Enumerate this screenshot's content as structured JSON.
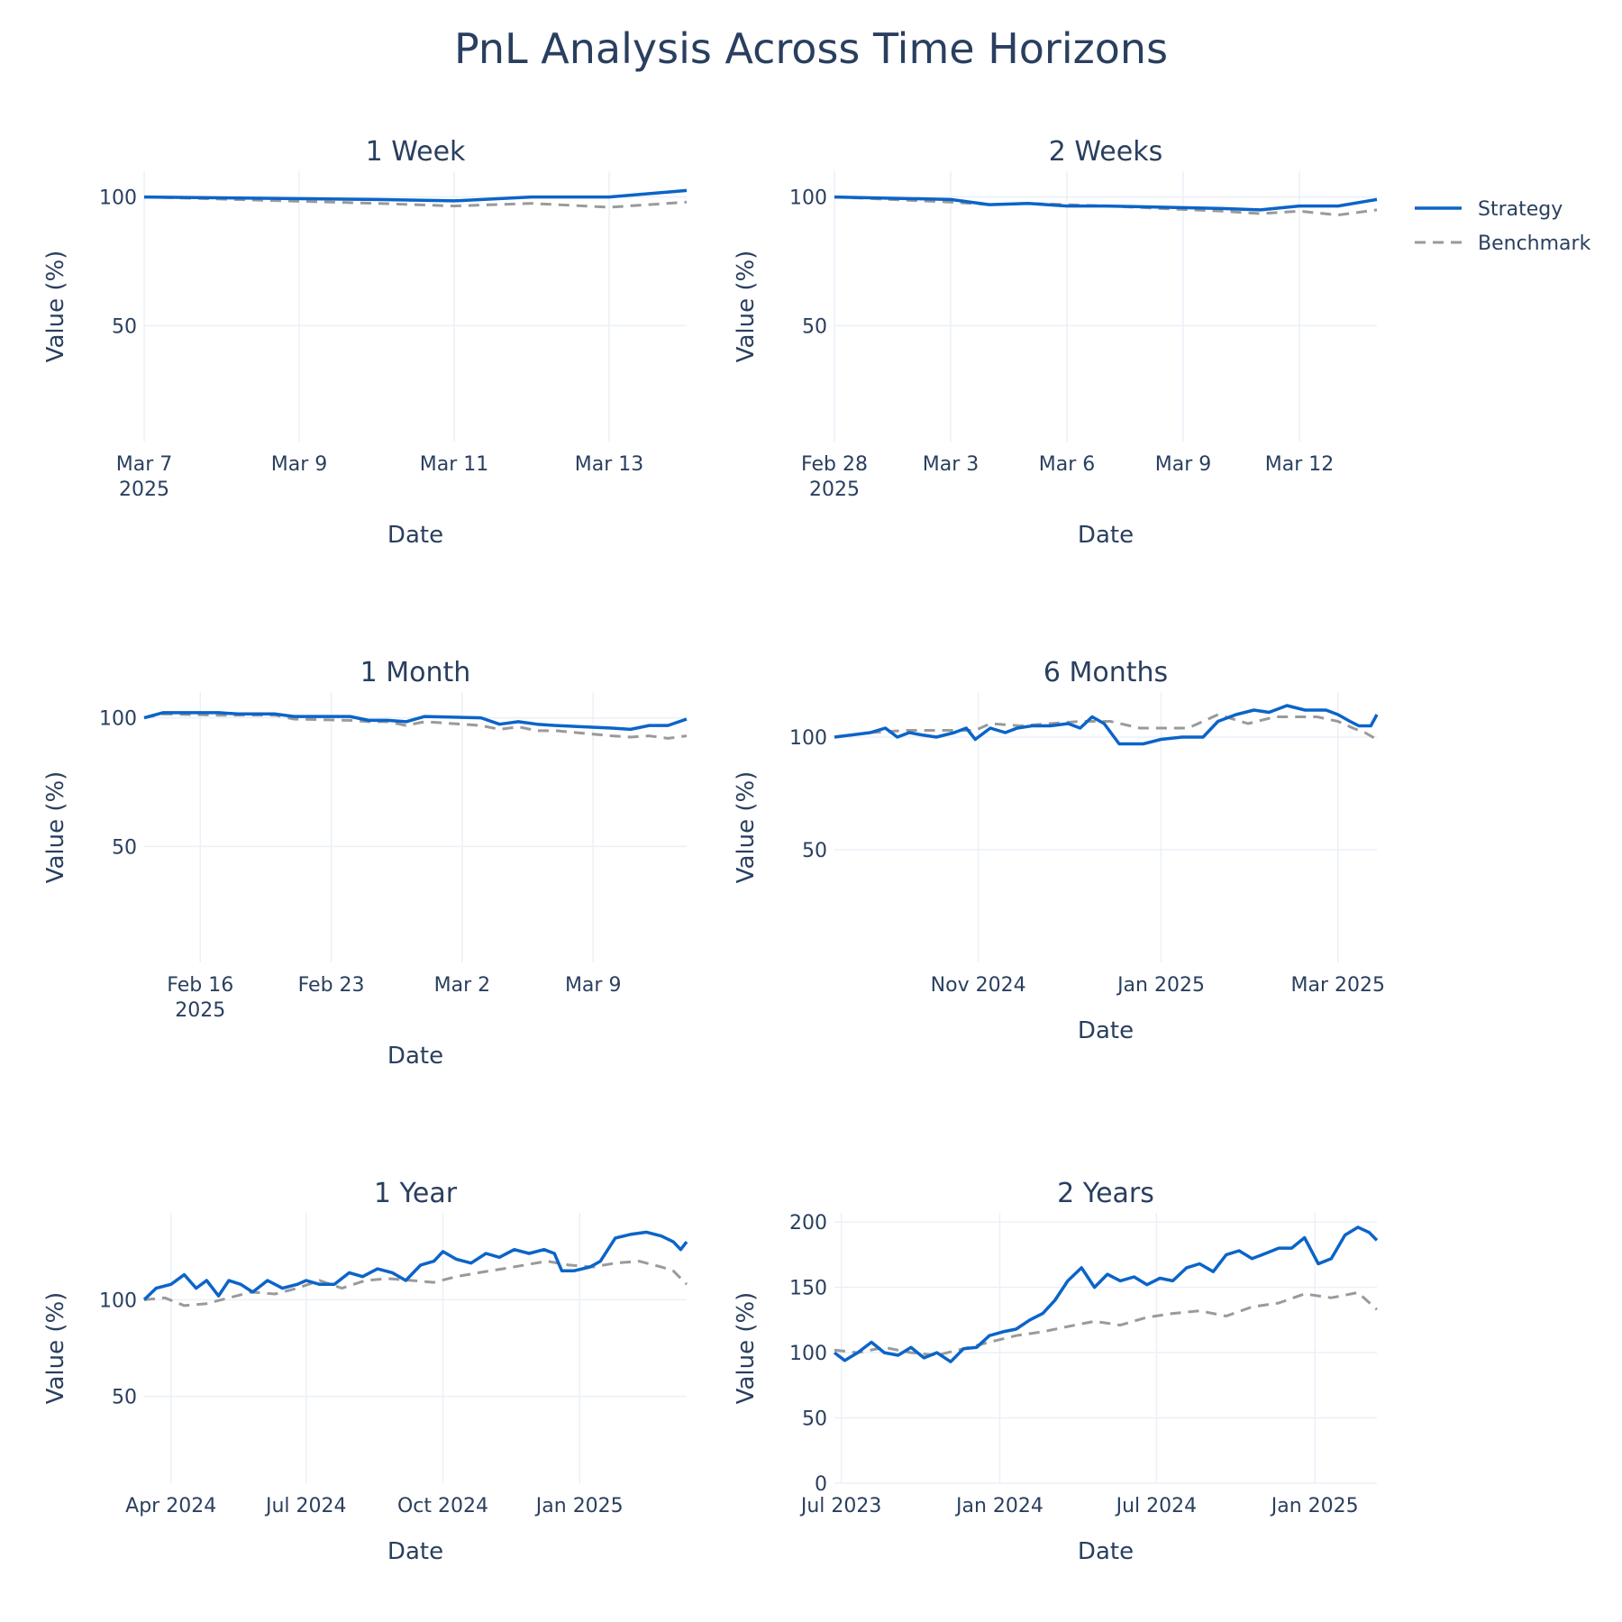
{
  "title": "PnL Analysis Across Time Horizons",
  "legend": {
    "placement": "top-right",
    "items": [
      {
        "name": "Strategy",
        "color": "#0b64c8",
        "dash": "solid"
      },
      {
        "name": "Benchmark",
        "color": "#9a9a9a",
        "dash": "dashed"
      }
    ]
  },
  "chart_data": [
    {
      "type": "line",
      "title": "1 Week",
      "xlabel": "Date",
      "ylabel": "Value (%)",
      "xlim": [
        "2025-03-07",
        "2025-03-14"
      ],
      "ylim": [
        5,
        110
      ],
      "yticks": [
        50,
        100
      ],
      "xticks": [
        {
          "date": "2025-03-07",
          "label": "Mar 7",
          "sublabel": "2025"
        },
        {
          "date": "2025-03-09",
          "label": "Mar 9"
        },
        {
          "date": "2025-03-11",
          "label": "Mar 11"
        },
        {
          "date": "2025-03-13",
          "label": "Mar 13"
        }
      ],
      "series": [
        {
          "name": "Strategy",
          "x": [
            "2025-03-07",
            "2025-03-10",
            "2025-03-11",
            "2025-03-12",
            "2025-03-13",
            "2025-03-14"
          ],
          "y": [
            100,
            99,
            98.5,
            100,
            100,
            102.5
          ]
        },
        {
          "name": "Benchmark",
          "x": [
            "2025-03-07",
            "2025-03-10",
            "2025-03-11",
            "2025-03-12",
            "2025-03-13",
            "2025-03-14"
          ],
          "y": [
            100,
            97.5,
            96.5,
            97.5,
            96,
            98
          ]
        }
      ]
    },
    {
      "type": "line",
      "title": "2 Weeks",
      "xlabel": "Date",
      "ylabel": "Value (%)",
      "xlim": [
        "2025-02-28",
        "2025-03-14"
      ],
      "ylim": [
        5,
        110
      ],
      "yticks": [
        50,
        100
      ],
      "xticks": [
        {
          "date": "2025-02-28",
          "label": "Feb 28",
          "sublabel": "2025"
        },
        {
          "date": "2025-03-03",
          "label": "Mar 3"
        },
        {
          "date": "2025-03-06",
          "label": "Mar 6"
        },
        {
          "date": "2025-03-09",
          "label": "Mar 9"
        },
        {
          "date": "2025-03-12",
          "label": "Mar 12"
        }
      ],
      "series": [
        {
          "name": "Strategy",
          "x": [
            "2025-02-28",
            "2025-03-03",
            "2025-03-04",
            "2025-03-05",
            "2025-03-06",
            "2025-03-07",
            "2025-03-10",
            "2025-03-11",
            "2025-03-12",
            "2025-03-13",
            "2025-03-14"
          ],
          "y": [
            100,
            99,
            97,
            97.5,
            96.5,
            96.5,
            95.5,
            95,
            96.5,
            96.5,
            99
          ]
        },
        {
          "name": "Benchmark",
          "x": [
            "2025-02-28",
            "2025-03-03",
            "2025-03-04",
            "2025-03-05",
            "2025-03-06",
            "2025-03-07",
            "2025-03-10",
            "2025-03-11",
            "2025-03-12",
            "2025-03-13",
            "2025-03-14"
          ],
          "y": [
            100,
            98,
            97,
            97.5,
            97,
            96.5,
            94.5,
            93.5,
            94.5,
            93,
            95
          ]
        }
      ]
    },
    {
      "type": "line",
      "title": "1 Month",
      "xlabel": "Date",
      "ylabel": "Value (%)",
      "xlim": [
        "2025-02-13",
        "2025-03-14"
      ],
      "ylim": [
        5,
        110
      ],
      "yticks": [
        50,
        100
      ],
      "xticks": [
        {
          "date": "2025-02-16",
          "label": "Feb 16",
          "sublabel": "2025"
        },
        {
          "date": "2025-02-23",
          "label": "Feb 23"
        },
        {
          "date": "2025-03-02",
          "label": "Mar 2"
        },
        {
          "date": "2025-03-09",
          "label": "Mar 9"
        }
      ],
      "series": [
        {
          "name": "Strategy",
          "x": [
            "2025-02-13",
            "2025-02-14",
            "2025-02-17",
            "2025-02-18",
            "2025-02-19",
            "2025-02-20",
            "2025-02-21",
            "2025-02-24",
            "2025-02-25",
            "2025-02-26",
            "2025-02-27",
            "2025-02-28",
            "2025-03-03",
            "2025-03-04",
            "2025-03-05",
            "2025-03-06",
            "2025-03-07",
            "2025-03-10",
            "2025-03-11",
            "2025-03-12",
            "2025-03-13",
            "2025-03-14"
          ],
          "y": [
            100,
            102,
            102,
            101.5,
            101.5,
            101.5,
            100.5,
            100.5,
            99,
            99,
            98.5,
            100.5,
            100,
            97.5,
            98.5,
            97.5,
            97,
            96,
            95.5,
            97,
            97,
            99.5
          ]
        },
        {
          "name": "Benchmark",
          "x": [
            "2025-02-13",
            "2025-02-14",
            "2025-02-17",
            "2025-02-18",
            "2025-02-19",
            "2025-02-20",
            "2025-02-21",
            "2025-02-24",
            "2025-02-25",
            "2025-02-26",
            "2025-02-27",
            "2025-02-28",
            "2025-03-03",
            "2025-03-04",
            "2025-03-05",
            "2025-03-06",
            "2025-03-07",
            "2025-03-10",
            "2025-03-11",
            "2025-03-12",
            "2025-03-13",
            "2025-03-14"
          ],
          "y": [
            100,
            101.5,
            101,
            101,
            101,
            101,
            99.5,
            99,
            98.5,
            98.5,
            97,
            98.5,
            97,
            95.5,
            96.5,
            95,
            95,
            93,
            92.5,
            93,
            92,
            93
          ]
        }
      ]
    },
    {
      "type": "line",
      "title": "6 Months",
      "xlabel": "Date",
      "ylabel": "Value (%)",
      "xlim": [
        "2024-09-14",
        "2025-03-14"
      ],
      "ylim": [
        0,
        120
      ],
      "yticks": [
        50,
        100
      ],
      "xticks": [
        {
          "date": "2024-11-01",
          "label": "Nov 2024"
        },
        {
          "date": "2025-01-01",
          "label": "Jan 2025"
        },
        {
          "date": "2025-03-01",
          "label": "Mar 2025"
        }
      ],
      "series": [
        {
          "name": "Strategy",
          "x": [
            "2024-09-14",
            "2024-09-20",
            "2024-09-26",
            "2024-10-01",
            "2024-10-05",
            "2024-10-09",
            "2024-10-13",
            "2024-10-18",
            "2024-10-24",
            "2024-10-28",
            "2024-10-31",
            "2024-11-05",
            "2024-11-10",
            "2024-11-14",
            "2024-11-19",
            "2024-11-25",
            "2024-12-01",
            "2024-12-05",
            "2024-12-09",
            "2024-12-13",
            "2024-12-18",
            "2024-12-20",
            "2024-12-26",
            "2025-01-01",
            "2025-01-08",
            "2025-01-15",
            "2025-01-20",
            "2025-01-26",
            "2025-02-01",
            "2025-02-06",
            "2025-02-12",
            "2025-02-18",
            "2025-02-25",
            "2025-03-01",
            "2025-03-05",
            "2025-03-08",
            "2025-03-12",
            "2025-03-14"
          ],
          "y": [
            100,
            101,
            102,
            104,
            100,
            102,
            101,
            100,
            102,
            104,
            99,
            104,
            102,
            104,
            105,
            105,
            106,
            104,
            109,
            106,
            97,
            97,
            97,
            99,
            100,
            100,
            107,
            110,
            112,
            111,
            114,
            112,
            112,
            110,
            107,
            105,
            105,
            110
          ]
        },
        {
          "name": "Benchmark",
          "x": [
            "2024-09-14",
            "2024-09-26",
            "2024-10-08",
            "2024-10-20",
            "2024-10-31",
            "2024-11-05",
            "2024-11-15",
            "2024-11-25",
            "2024-12-05",
            "2024-12-15",
            "2024-12-25",
            "2025-01-01",
            "2025-01-10",
            "2025-01-20",
            "2025-01-30",
            "2025-02-08",
            "2025-02-15",
            "2025-02-22",
            "2025-03-01",
            "2025-03-06",
            "2025-03-10",
            "2025-03-14"
          ],
          "y": [
            100,
            102,
            103,
            103,
            103,
            106,
            105,
            106,
            107,
            107,
            104,
            104,
            104,
            110,
            106,
            109,
            109,
            109,
            107,
            104,
            102,
            99
          ]
        }
      ]
    },
    {
      "type": "line",
      "title": "1 Year",
      "xlabel": "Date",
      "ylabel": "Value (%)",
      "xlim": [
        "2024-03-14",
        "2025-03-14"
      ],
      "ylim": [
        5,
        145
      ],
      "yticks": [
        50,
        100
      ],
      "xticks": [
        {
          "date": "2024-04-01",
          "label": "Apr 2024"
        },
        {
          "date": "2024-07-01",
          "label": "Jul 2024"
        },
        {
          "date": "2024-10-01",
          "label": "Oct 2024"
        },
        {
          "date": "2025-01-01",
          "label": "Jan 2025"
        }
      ],
      "series": [
        {
          "name": "Strategy",
          "x": [
            "2024-03-14",
            "2024-03-22",
            "2024-04-01",
            "2024-04-10",
            "2024-04-18",
            "2024-04-25",
            "2024-05-03",
            "2024-05-10",
            "2024-05-18",
            "2024-05-26",
            "2024-06-05",
            "2024-06-15",
            "2024-06-25",
            "2024-07-01",
            "2024-07-10",
            "2024-07-20",
            "2024-07-30",
            "2024-08-08",
            "2024-08-18",
            "2024-08-28",
            "2024-09-06",
            "2024-09-16",
            "2024-09-25",
            "2024-10-01",
            "2024-10-10",
            "2024-10-20",
            "2024-10-30",
            "2024-11-08",
            "2024-11-18",
            "2024-11-28",
            "2024-12-08",
            "2024-12-15",
            "2024-12-20",
            "2024-12-28",
            "2025-01-08",
            "2025-01-15",
            "2025-01-25",
            "2025-02-05",
            "2025-02-15",
            "2025-02-25",
            "2025-03-05",
            "2025-03-10",
            "2025-03-14"
          ],
          "y": [
            100,
            106,
            108,
            113,
            106,
            110,
            102,
            110,
            108,
            104,
            110,
            106,
            108,
            110,
            108,
            108,
            114,
            112,
            116,
            114,
            110,
            118,
            120,
            125,
            121,
            119,
            124,
            122,
            126,
            124,
            126,
            124,
            115,
            115,
            117,
            120,
            132,
            134,
            135,
            133,
            130,
            126,
            130
          ]
        },
        {
          "name": "Benchmark",
          "x": [
            "2024-03-14",
            "2024-03-28",
            "2024-04-10",
            "2024-04-25",
            "2024-05-10",
            "2024-05-25",
            "2024-06-10",
            "2024-06-25",
            "2024-07-10",
            "2024-07-25",
            "2024-08-10",
            "2024-08-25",
            "2024-09-10",
            "2024-09-25",
            "2024-10-10",
            "2024-10-25",
            "2024-11-10",
            "2024-11-25",
            "2024-12-10",
            "2024-12-25",
            "2025-01-10",
            "2025-01-25",
            "2025-02-10",
            "2025-02-25",
            "2025-03-05",
            "2025-03-14"
          ],
          "y": [
            100,
            101,
            97,
            98,
            101,
            104,
            103,
            106,
            110,
            106,
            110,
            111,
            110,
            109,
            112,
            114,
            116,
            118,
            120,
            118,
            117,
            119,
            120,
            117,
            115,
            108
          ]
        }
      ]
    },
    {
      "type": "line",
      "title": "2 Years",
      "xlabel": "Date",
      "ylabel": "Value (%)",
      "xlim": [
        "2023-06-23",
        "2025-03-14"
      ],
      "ylim": [
        0,
        207
      ],
      "yticks": [
        0,
        50,
        100,
        150,
        200
      ],
      "xticks": [
        {
          "date": "2023-07-01",
          "label": "Jul 2023"
        },
        {
          "date": "2024-01-01",
          "label": "Jan 2024"
        },
        {
          "date": "2024-07-01",
          "label": "Jul 2024"
        },
        {
          "date": "2025-01-01",
          "label": "Jan 2025"
        }
      ],
      "series": [
        {
          "name": "Strategy",
          "x": [
            "2023-06-23",
            "2023-07-05",
            "2023-07-20",
            "2023-08-05",
            "2023-08-20",
            "2023-09-05",
            "2023-09-20",
            "2023-10-05",
            "2023-10-20",
            "2023-11-05",
            "2023-11-20",
            "2023-12-05",
            "2023-12-20",
            "2024-01-05",
            "2024-01-20",
            "2024-02-05",
            "2024-02-20",
            "2024-03-05",
            "2024-03-20",
            "2024-04-05",
            "2024-04-20",
            "2024-05-05",
            "2024-05-20",
            "2024-06-05",
            "2024-06-20",
            "2024-07-05",
            "2024-07-20",
            "2024-08-05",
            "2024-08-20",
            "2024-09-05",
            "2024-09-20",
            "2024-10-05",
            "2024-10-20",
            "2024-11-05",
            "2024-11-20",
            "2024-12-05",
            "2024-12-20",
            "2025-01-05",
            "2025-01-20",
            "2025-02-05",
            "2025-02-20",
            "2025-03-05",
            "2025-03-14"
          ],
          "y": [
            100,
            94,
            100,
            108,
            100,
            98,
            104,
            96,
            100,
            93,
            103,
            104,
            113,
            116,
            118,
            125,
            130,
            140,
            155,
            165,
            150,
            160,
            155,
            158,
            152,
            157,
            155,
            165,
            168,
            162,
            175,
            178,
            172,
            176,
            180,
            180,
            188,
            168,
            172,
            190,
            196,
            192,
            186
          ]
        },
        {
          "name": "Benchmark",
          "x": [
            "2023-06-23",
            "2023-07-20",
            "2023-08-20",
            "2023-09-20",
            "2023-10-20",
            "2023-11-20",
            "2023-12-20",
            "2024-01-20",
            "2024-02-20",
            "2024-03-20",
            "2024-04-20",
            "2024-05-20",
            "2024-06-20",
            "2024-07-20",
            "2024-08-20",
            "2024-09-20",
            "2024-10-20",
            "2024-11-20",
            "2024-12-20",
            "2025-01-20",
            "2025-02-20",
            "2025-03-14"
          ],
          "y": [
            102,
            100,
            104,
            100,
            98,
            103,
            108,
            113,
            116,
            120,
            124,
            121,
            127,
            130,
            132,
            128,
            135,
            138,
            145,
            142,
            146,
            133
          ]
        }
      ]
    }
  ]
}
